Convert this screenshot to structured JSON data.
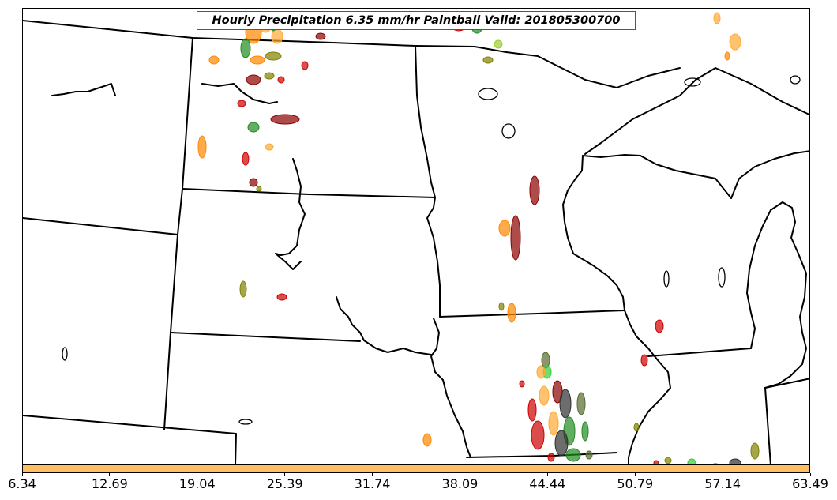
{
  "title": "Hourly Precipitation 6.35 mm/hr Paintball Valid: 201805300700",
  "colorbar": {
    "color": "#ffbe64",
    "tick_labels": [
      "6.34",
      "12.69",
      "19.04",
      "25.39",
      "31.74",
      "38.09",
      "44.44",
      "50.79",
      "57.14",
      "63.49"
    ]
  },
  "map": {
    "background": "#ffffff",
    "boundary_color": "#000000",
    "paintball_colors": [
      "#cc0000",
      "#ff8800",
      "#ffaa33",
      "#8b0000",
      "#228b22",
      "#556b2f",
      "#9acd32",
      "#808000",
      "#2f2f2f",
      "#33cc33"
    ]
  }
}
